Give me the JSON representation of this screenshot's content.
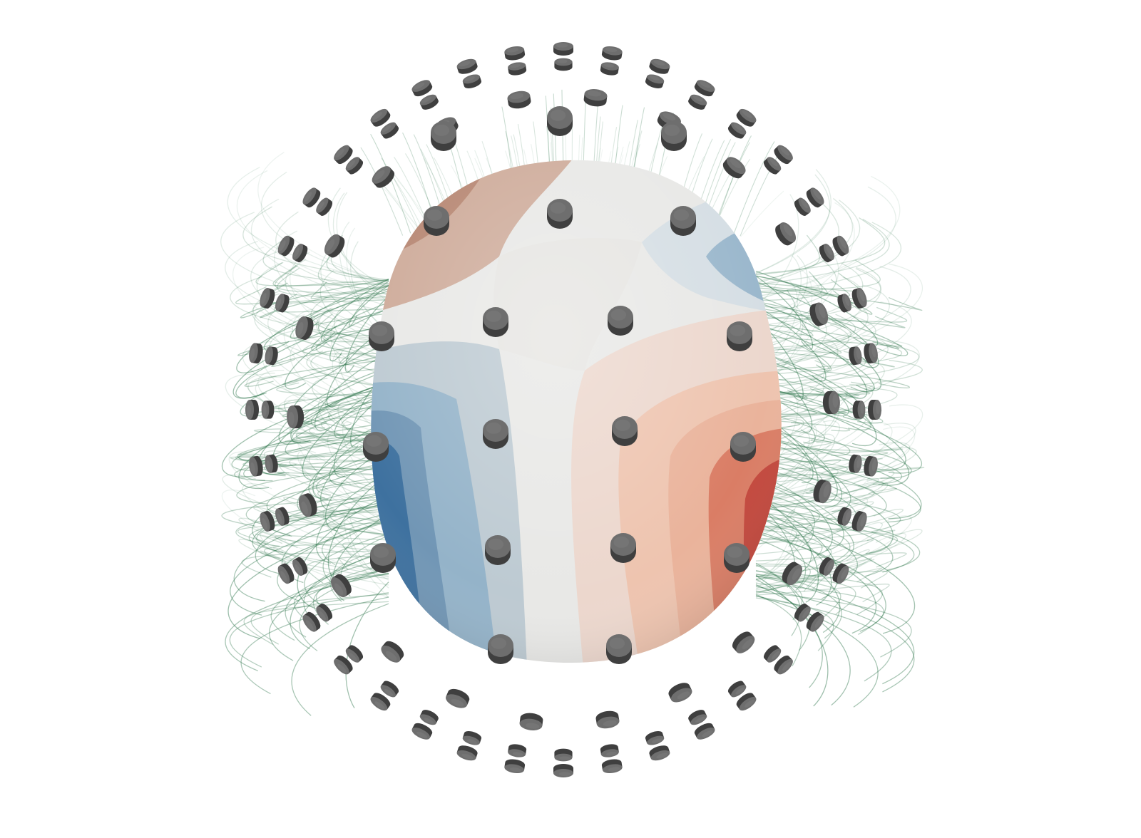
{
  "scene": {
    "background_color": "#ffffff",
    "head": {
      "colormap": [
        "#3b6f9e",
        "#8fb0c8",
        "#e8e8e6",
        "#e9b29a",
        "#c2453a",
        "#a3201f"
      ]
    },
    "field_lines_color": "#1f6b3e",
    "sensor_color": "#5a5a5a",
    "sensor_top_color": "#6e6e6e",
    "eeg_electrode_count": 20,
    "meg_sensor_count": 102
  }
}
